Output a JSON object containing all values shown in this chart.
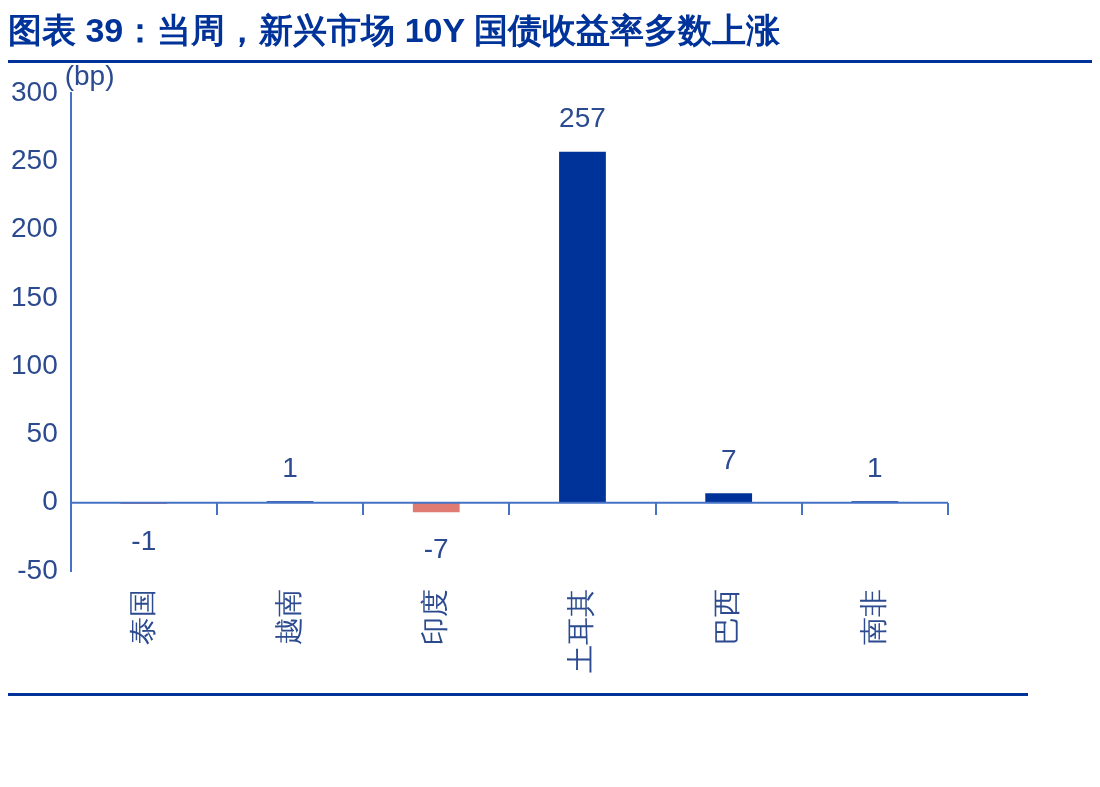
{
  "chart_data": {
    "type": "bar",
    "title": "图表 39：当周，新兴市场 10Y 国债收益率多数上涨",
    "ylabel": "(bp)",
    "categories": [
      "泰国",
      "越南",
      "印度",
      "土耳其",
      "巴西",
      "南非"
    ],
    "values": [
      -1,
      1,
      -7,
      257,
      7,
      1
    ],
    "colors": [
      "#e07b74",
      "#003399",
      "#e07b74",
      "#003399",
      "#003399",
      "#003399"
    ],
    "ylim": [
      -50,
      300
    ],
    "yticks": [
      -50,
      0,
      50,
      100,
      150,
      200,
      250,
      300
    ],
    "ref_lines": [
      {
        "axis": "y",
        "value": 0,
        "color": "#4472c4"
      }
    ],
    "grid": false,
    "legend": false,
    "data_labels": true
  }
}
